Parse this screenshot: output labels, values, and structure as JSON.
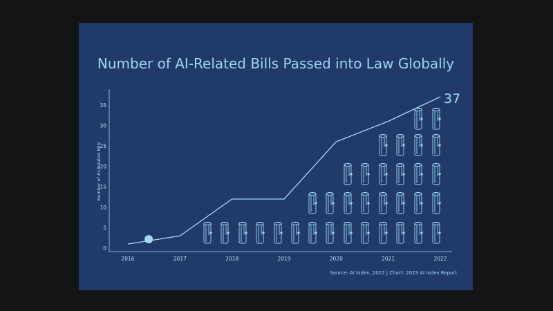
{
  "chart_data": {
    "type": "line",
    "title": "Number of AI-Related Bills Passed into Law Globally",
    "ylabel": "Number of AI-Related Bills",
    "xlabel": "",
    "x": [
      2016,
      2017,
      2018,
      2019,
      2020,
      2021,
      2022
    ],
    "values": [
      1,
      3,
      12,
      12,
      26,
      31,
      37
    ],
    "x_ticks": [
      "2016",
      "2017",
      "2018",
      "2019",
      "2020",
      "2021",
      "2022"
    ],
    "y_ticks": [
      "0",
      "5",
      "10",
      "15",
      "20",
      "25",
      "30",
      "35"
    ],
    "ylim": [
      0,
      37
    ],
    "end_label": "37",
    "grid": false,
    "highlight_point": {
      "x": 2016.4,
      "y": 2
    },
    "source": "Source: AI Index, 2022 | Chart: 2023 AI Index Report",
    "colors": {
      "background": "#203b6b",
      "line": "#a5d8f5",
      "text": "#9fd3f0"
    }
  }
}
